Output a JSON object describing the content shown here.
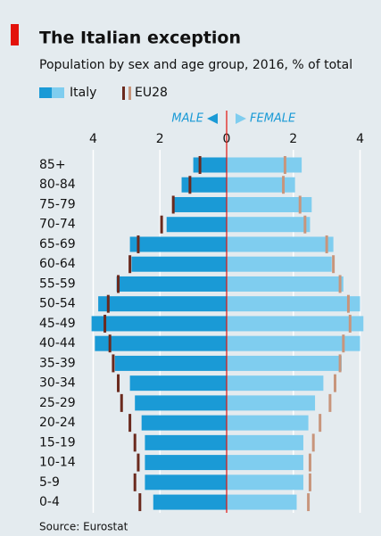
{
  "chart_data": {
    "type": "population_pyramid",
    "title": "The Italian exception",
    "subtitle": "Population by sex and age group, 2016, % of total",
    "left_label": "MALE",
    "right_label": "FEMALE",
    "source": "Source: Eurostat",
    "categories": [
      "85+",
      "80-84",
      "75-79",
      "70-74",
      "65-69",
      "60-64",
      "55-59",
      "50-54",
      "45-49",
      "40-44",
      "35-39",
      "30-34",
      "25-29",
      "20-24",
      "15-19",
      "10-14",
      "5-9",
      "0-4"
    ],
    "series": [
      {
        "name": "Italy",
        "male_color": "#1a9ad6",
        "female_color": "#7fcdef",
        "male": [
          1.0,
          1.35,
          1.6,
          1.8,
          2.9,
          2.85,
          3.3,
          3.85,
          4.05,
          3.95,
          3.35,
          2.9,
          2.75,
          2.55,
          2.45,
          2.45,
          2.45,
          2.2
        ],
        "female": [
          2.25,
          2.05,
          2.55,
          2.5,
          3.2,
          3.15,
          3.5,
          4.0,
          4.1,
          4.0,
          3.45,
          2.9,
          2.65,
          2.45,
          2.3,
          2.3,
          2.3,
          2.1
        ]
      },
      {
        "name": "EU28",
        "male_color": "#6b2a1e",
        "female_color": "#c8957c",
        "male": [
          0.8,
          1.1,
          1.6,
          1.95,
          2.65,
          2.9,
          3.25,
          3.55,
          3.65,
          3.5,
          3.4,
          3.25,
          3.15,
          2.9,
          2.75,
          2.65,
          2.75,
          2.6
        ],
        "female": [
          1.75,
          1.7,
          2.2,
          2.35,
          3.0,
          3.2,
          3.4,
          3.65,
          3.7,
          3.5,
          3.4,
          3.25,
          3.1,
          2.8,
          2.6,
          2.5,
          2.5,
          2.45
        ]
      }
    ],
    "xlim": [
      -4.2,
      4.2
    ],
    "xticks": [
      {
        "value": -4,
        "label": "4"
      },
      {
        "value": -2,
        "label": "2"
      },
      0,
      2,
      4
    ],
    "grid": true
  }
}
